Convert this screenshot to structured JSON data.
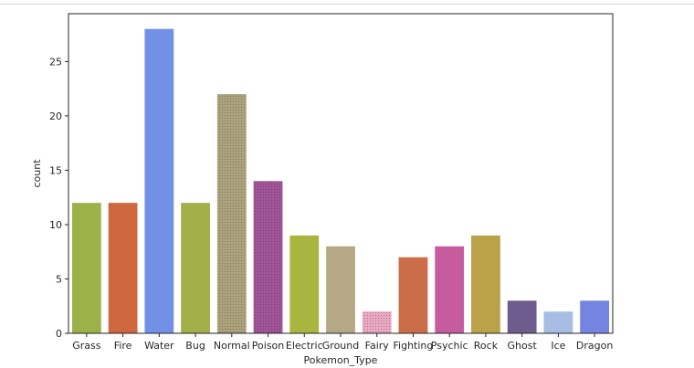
{
  "chart_data": {
    "type": "bar",
    "xlabel": "Pokemon_Type",
    "ylabel": "count",
    "ylim": [
      0,
      29.4
    ],
    "yticks": [
      0,
      5,
      10,
      15,
      20,
      25
    ],
    "grid": false,
    "categories": [
      "Grass",
      "Fire",
      "Water",
      "Bug",
      "Normal",
      "Poison",
      "Electric",
      "Ground",
      "Fairy",
      "Fighting",
      "Psychic",
      "Rock",
      "Ghost",
      "Ice",
      "Dragon"
    ],
    "values": [
      12,
      12,
      28,
      12,
      22,
      14,
      9,
      8,
      2,
      7,
      8,
      9,
      3,
      2,
      3
    ],
    "colors": [
      "#9db14a",
      "#d0683f",
      "#7290e6",
      "#a3b04a",
      "#aca27c",
      "#a15599",
      "#aab53f",
      "#b5a885",
      "#eaa8c2",
      "#cc6d49",
      "#c65b9e",
      "#b9a24a",
      "#6e5c8f",
      "#a8bde3",
      "#7584e0"
    ],
    "textured": [
      false,
      false,
      false,
      false,
      true,
      true,
      false,
      false,
      true,
      false,
      false,
      false,
      false,
      false,
      false
    ]
  }
}
